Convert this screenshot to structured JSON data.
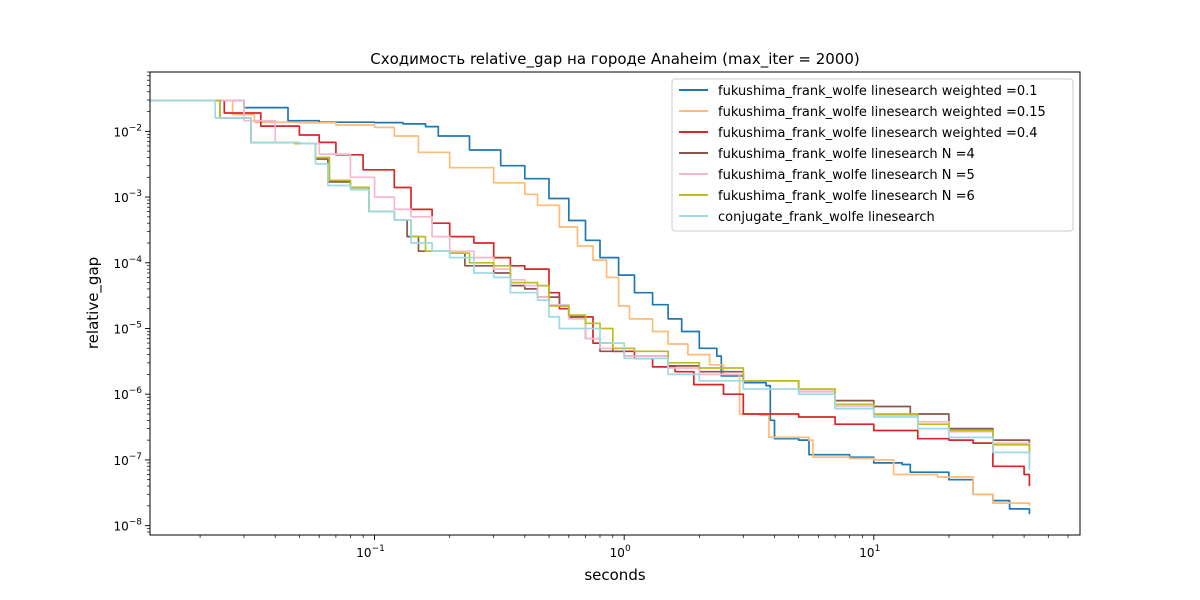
{
  "chart_data": {
    "type": "line",
    "title": "Сходимость relative_gap на городе Anaheim  (max_iter = 2000)",
    "xlabel": "seconds",
    "ylabel": "relative_gap",
    "xscale": "log",
    "yscale": "log",
    "xlim": [
      0.0126,
      67
    ],
    "ylim": [
      7.2e-09,
      0.08
    ],
    "grid": false,
    "legend": "top-right",
    "xticks": [
      {
        "value": 0.1,
        "base": "10",
        "exp": "−1"
      },
      {
        "value": 1,
        "base": "10",
        "exp": "0"
      },
      {
        "value": 10,
        "base": "10",
        "exp": "1"
      }
    ],
    "yticks": [
      {
        "value": 1e-08,
        "base": "10",
        "exp": "−8"
      },
      {
        "value": 1e-07,
        "base": "10",
        "exp": "−7"
      },
      {
        "value": 1e-06,
        "base": "10",
        "exp": "−6"
      },
      {
        "value": 1e-05,
        "base": "10",
        "exp": "−5"
      },
      {
        "value": 0.0001,
        "base": "10",
        "exp": "−4"
      },
      {
        "value": 0.001,
        "base": "10",
        "exp": "−3"
      },
      {
        "value": 0.01,
        "base": "10",
        "exp": "−2"
      }
    ],
    "series": [
      {
        "name": "fukushima_frank_wolfe linesearch weighted =0.1",
        "color": "#1f77b4",
        "points": [
          [
            0.0126,
            0.0295
          ],
          [
            0.0215,
            0.0295
          ],
          [
            0.03,
            0.023
          ],
          [
            0.045,
            0.0145
          ],
          [
            0.06,
            0.0138
          ],
          [
            0.1,
            0.0136
          ],
          [
            0.13,
            0.013
          ],
          [
            0.16,
            0.0118
          ],
          [
            0.18,
            0.0085
          ],
          [
            0.24,
            0.0052
          ],
          [
            0.32,
            0.003
          ],
          [
            0.4,
            0.0019
          ],
          [
            0.5,
            0.00095
          ],
          [
            0.6,
            0.00044
          ],
          [
            0.7,
            0.00022
          ],
          [
            0.8,
            0.00012
          ],
          [
            0.95,
            6.5e-05
          ],
          [
            1.1,
            3.5e-05
          ],
          [
            1.3,
            2.3e-05
          ],
          [
            1.5,
            1.4e-05
          ],
          [
            1.7,
            9e-06
          ],
          [
            2.0,
            5e-06
          ],
          [
            2.35,
            3.8e-06
          ],
          [
            2.45,
            1.9e-06
          ],
          [
            3.0,
            1.5e-06
          ],
          [
            3.7,
            1.35e-06
          ],
          [
            3.85,
            4e-07
          ],
          [
            4.0,
            2.1e-07
          ],
          [
            5.0,
            2e-07
          ],
          [
            5.5,
            1.2e-07
          ],
          [
            8,
            1.1e-07
          ],
          [
            10,
            9e-08
          ],
          [
            13,
            8.5e-08
          ],
          [
            14,
            6.5e-08
          ],
          [
            20,
            5e-08
          ],
          [
            25,
            3e-08
          ],
          [
            30,
            2.4e-08
          ],
          [
            35,
            1.8e-08
          ],
          [
            42,
            1.5e-08
          ]
        ]
      },
      {
        "name": "fukushima_frank_wolfe linesearch weighted =0.15",
        "color": "#ffbb78",
        "points": [
          [
            0.0126,
            0.0295
          ],
          [
            0.02,
            0.0295
          ],
          [
            0.027,
            0.018
          ],
          [
            0.033,
            0.0138
          ],
          [
            0.05,
            0.0135
          ],
          [
            0.07,
            0.0125
          ],
          [
            0.1,
            0.0115
          ],
          [
            0.12,
            0.0085
          ],
          [
            0.15,
            0.0048
          ],
          [
            0.2,
            0.0028
          ],
          [
            0.3,
            0.00165
          ],
          [
            0.4,
            0.0011
          ],
          [
            0.45,
            0.00075
          ],
          [
            0.55,
            0.00035
          ],
          [
            0.65,
            0.00018
          ],
          [
            0.75,
            0.00011
          ],
          [
            0.85,
            6e-05
          ],
          [
            0.95,
            2.2e-05
          ],
          [
            1.05,
            1.4e-05
          ],
          [
            1.3,
            9e-06
          ],
          [
            1.5,
            5.8e-06
          ],
          [
            1.8,
            4e-06
          ],
          [
            2.2,
            2.8e-06
          ],
          [
            2.5,
            2e-06
          ],
          [
            2.9,
            5e-07
          ],
          [
            3.5,
            4.8e-07
          ],
          [
            3.8,
            2.2e-07
          ],
          [
            5.5,
            2e-07
          ],
          [
            5.7,
            1.1e-07
          ],
          [
            8,
            1.05e-07
          ],
          [
            10,
            1e-07
          ],
          [
            12,
            6e-08
          ],
          [
            18,
            5.5e-08
          ],
          [
            25,
            3e-08
          ],
          [
            30,
            2.2e-08
          ],
          [
            42,
            2e-08
          ]
        ]
      },
      {
        "name": "fukushima_frank_wolfe linesearch weighted =0.4",
        "color": "#d62728",
        "points": [
          [
            0.0126,
            0.0295
          ],
          [
            0.017,
            0.0295
          ],
          [
            0.025,
            0.019
          ],
          [
            0.035,
            0.012
          ],
          [
            0.05,
            0.0088
          ],
          [
            0.06,
            0.0068
          ],
          [
            0.07,
            0.0044
          ],
          [
            0.09,
            0.0026
          ],
          [
            0.12,
            0.0014
          ],
          [
            0.14,
            0.00065
          ],
          [
            0.17,
            0.0004
          ],
          [
            0.2,
            0.00025
          ],
          [
            0.25,
            0.0002
          ],
          [
            0.3,
            0.00012
          ],
          [
            0.35,
            9e-05
          ],
          [
            0.4,
            8e-05
          ],
          [
            0.5,
            3.5e-05
          ],
          [
            0.55,
            2e-05
          ],
          [
            0.6,
            1.5e-05
          ],
          [
            0.75,
            6e-06
          ],
          [
            0.9,
            4.5e-06
          ],
          [
            1.1,
            3.5e-06
          ],
          [
            1.3,
            2.6e-06
          ],
          [
            1.6,
            2.2e-06
          ],
          [
            1.9,
            1.4e-06
          ],
          [
            2.5,
            1e-06
          ],
          [
            3,
            5e-07
          ],
          [
            4,
            5e-07
          ],
          [
            5,
            4.5e-07
          ],
          [
            7,
            3.5e-07
          ],
          [
            10,
            2.8e-07
          ],
          [
            15,
            2.1e-07
          ],
          [
            20,
            2e-07
          ],
          [
            25,
            1.8e-07
          ],
          [
            30,
            8e-08
          ],
          [
            40,
            6e-08
          ],
          [
            42,
            4e-08
          ]
        ]
      },
      {
        "name": "fukushima_frank_wolfe linesearch N =4",
        "color": "#8c564b",
        "points": [
          [
            0.0126,
            0.0295
          ],
          [
            0.017,
            0.0295
          ],
          [
            0.024,
            0.016
          ],
          [
            0.032,
            0.0068
          ],
          [
            0.05,
            0.0065
          ],
          [
            0.058,
            0.0038
          ],
          [
            0.065,
            0.0017
          ],
          [
            0.08,
            0.0014
          ],
          [
            0.095,
            0.0006
          ],
          [
            0.12,
            0.00045
          ],
          [
            0.135,
            0.00025
          ],
          [
            0.15,
            0.00015
          ],
          [
            0.2,
            0.00014
          ],
          [
            0.23,
            9e-05
          ],
          [
            0.3,
            7e-05
          ],
          [
            0.35,
            4.5e-05
          ],
          [
            0.4,
            4e-05
          ],
          [
            0.45,
            3e-05
          ],
          [
            0.55,
            2.2e-05
          ],
          [
            0.6,
            1.5e-05
          ],
          [
            0.7,
            7e-06
          ],
          [
            0.8,
            4.5e-06
          ],
          [
            1.0,
            3.8e-06
          ],
          [
            1.5,
            2.7e-06
          ],
          [
            2.0,
            2.2e-06
          ],
          [
            3,
            1.6e-06
          ],
          [
            5,
            1.1e-06
          ],
          [
            7,
            8e-07
          ],
          [
            10,
            6.5e-07
          ],
          [
            14,
            5e-07
          ],
          [
            20,
            3e-07
          ],
          [
            30,
            2e-07
          ],
          [
            42,
            1.25e-07
          ]
        ]
      },
      {
        "name": "fukushima_frank_wolfe linesearch N =5",
        "color": "#f7b6d2",
        "points": [
          [
            0.0126,
            0.0295
          ],
          [
            0.023,
            0.0295
          ],
          [
            0.03,
            0.0145
          ],
          [
            0.04,
            0.0068
          ],
          [
            0.048,
            0.0065
          ],
          [
            0.06,
            0.0045
          ],
          [
            0.08,
            0.002
          ],
          [
            0.1,
            0.001
          ],
          [
            0.12,
            0.00065
          ],
          [
            0.14,
            0.0005
          ],
          [
            0.17,
            0.00025
          ],
          [
            0.2,
            0.00015
          ],
          [
            0.25,
            0.00012
          ],
          [
            0.3,
            8e-05
          ],
          [
            0.35,
            5.5e-05
          ],
          [
            0.4,
            4.5e-05
          ],
          [
            0.45,
            3e-05
          ],
          [
            0.5,
            2.3e-05
          ],
          [
            0.6,
            1.4e-05
          ],
          [
            0.7,
            7e-06
          ],
          [
            0.8,
            5e-06
          ],
          [
            1.0,
            3.8e-06
          ],
          [
            1.5,
            2.5e-06
          ],
          [
            2,
            2e-06
          ],
          [
            3,
            1.6e-06
          ],
          [
            5,
            1.1e-06
          ],
          [
            7,
            6.5e-07
          ],
          [
            10,
            4.8e-07
          ],
          [
            15,
            3.8e-07
          ],
          [
            20,
            2.7e-07
          ],
          [
            30,
            1.8e-07
          ],
          [
            42,
            1.1e-07
          ]
        ]
      },
      {
        "name": "fukushima_frank_wolfe linesearch N =6",
        "color": "#bcbd22",
        "points": [
          [
            0.0126,
            0.0295
          ],
          [
            0.017,
            0.0295
          ],
          [
            0.024,
            0.016
          ],
          [
            0.032,
            0.0068
          ],
          [
            0.048,
            0.0065
          ],
          [
            0.058,
            0.004
          ],
          [
            0.066,
            0.0018
          ],
          [
            0.08,
            0.0014
          ],
          [
            0.095,
            0.0006
          ],
          [
            0.12,
            0.00045
          ],
          [
            0.14,
            0.00025
          ],
          [
            0.16,
            0.00015
          ],
          [
            0.2,
            0.00014
          ],
          [
            0.24,
            0.0001
          ],
          [
            0.3,
            9e-05
          ],
          [
            0.35,
            5e-05
          ],
          [
            0.45,
            4.5e-05
          ],
          [
            0.5,
            2.2e-05
          ],
          [
            0.6,
            1.6e-05
          ],
          [
            0.7,
            1.2e-05
          ],
          [
            0.8,
            1e-05
          ],
          [
            0.9,
            5e-06
          ],
          [
            1.1,
            4.5e-06
          ],
          [
            1.5,
            3e-06
          ],
          [
            2,
            2.5e-06
          ],
          [
            3,
            1.6e-06
          ],
          [
            5,
            1.2e-06
          ],
          [
            7,
            7e-07
          ],
          [
            10,
            5e-07
          ],
          [
            15,
            3.5e-07
          ],
          [
            20,
            2.8e-07
          ],
          [
            30,
            1.7e-07
          ],
          [
            42,
            9e-08
          ]
        ]
      },
      {
        "name": "conjugate_frank_wolfe linesearch",
        "color": "#9edae5",
        "points": [
          [
            0.0126,
            0.0295
          ],
          [
            0.017,
            0.0295
          ],
          [
            0.023,
            0.016
          ],
          [
            0.032,
            0.0068
          ],
          [
            0.05,
            0.0065
          ],
          [
            0.058,
            0.0032
          ],
          [
            0.065,
            0.0015
          ],
          [
            0.08,
            0.0013
          ],
          [
            0.095,
            0.0006
          ],
          [
            0.12,
            0.00045
          ],
          [
            0.14,
            0.0002
          ],
          [
            0.17,
            0.00015
          ],
          [
            0.2,
            0.00012
          ],
          [
            0.25,
            7e-05
          ],
          [
            0.3,
            6e-05
          ],
          [
            0.35,
            3.5e-05
          ],
          [
            0.45,
            2.7e-05
          ],
          [
            0.5,
            1.5e-05
          ],
          [
            0.55,
            1e-05
          ],
          [
            0.65,
            1e-05
          ],
          [
            0.8,
            6e-06
          ],
          [
            1.0,
            3.5e-06
          ],
          [
            1.5,
            2e-06
          ],
          [
            2,
            1.6e-06
          ],
          [
            3,
            1.2e-06
          ],
          [
            5,
            1e-06
          ],
          [
            7,
            6e-07
          ],
          [
            10,
            4.5e-07
          ],
          [
            15,
            3e-07
          ],
          [
            20,
            2.2e-07
          ],
          [
            30,
            1.3e-07
          ],
          [
            42,
            7e-08
          ]
        ]
      }
    ]
  }
}
